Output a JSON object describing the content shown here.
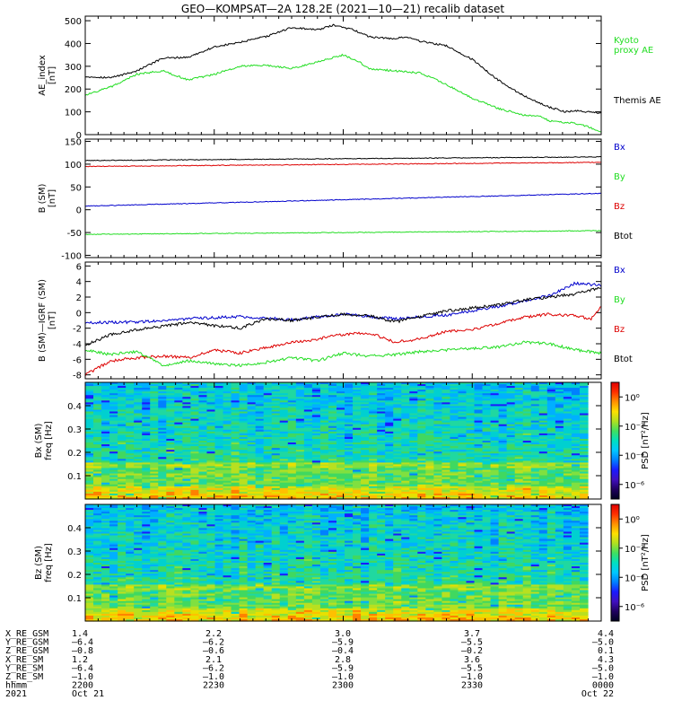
{
  "title": "GEO—KOMPSAT—2A 128.2E (2021—10—21) recalib dataset",
  "colors": {
    "black": "#000000",
    "green": "#22dd22",
    "blue": "#0000cc",
    "red": "#dd0000"
  },
  "chart_data": [
    {
      "type": "line",
      "id": "ae",
      "ylabel": [
        "AE_index",
        "[nT]"
      ],
      "ylim": [
        0,
        520
      ],
      "yticks": [
        0,
        100,
        200,
        300,
        400,
        500
      ],
      "xlim": [
        0,
        1
      ],
      "series": [
        {
          "name": "Themis AE",
          "color": "#000000",
          "x": [
            0,
            0.05,
            0.1,
            0.15,
            0.2,
            0.25,
            0.3,
            0.35,
            0.4,
            0.45,
            0.48,
            0.52,
            0.55,
            0.6,
            0.62,
            0.65,
            0.7,
            0.75,
            0.8,
            0.85,
            0.9,
            0.93,
            0.95,
            1
          ],
          "y": [
            255,
            250,
            280,
            335,
            340,
            385,
            405,
            430,
            470,
            460,
            480,
            460,
            430,
            420,
            430,
            410,
            390,
            330,
            240,
            170,
            120,
            100,
            105,
            95
          ]
        },
        {
          "name": "Kyoto proxy AE",
          "color": "#22dd22",
          "x": [
            0,
            0.05,
            0.1,
            0.15,
            0.2,
            0.25,
            0.3,
            0.35,
            0.4,
            0.45,
            0.5,
            0.53,
            0.55,
            0.6,
            0.65,
            0.7,
            0.75,
            0.8,
            0.85,
            0.88,
            0.9,
            0.95,
            0.98,
            1
          ],
          "y": [
            175,
            210,
            265,
            280,
            240,
            265,
            300,
            305,
            290,
            320,
            350,
            320,
            290,
            280,
            270,
            220,
            160,
            115,
            85,
            80,
            60,
            50,
            30,
            10
          ]
        }
      ],
      "legend": [
        {
          "text": [
            "Kyoto",
            "proxy AE"
          ],
          "color": "#22dd22"
        },
        {
          "text": [
            "Themis AE"
          ],
          "color": "#000000"
        }
      ]
    },
    {
      "type": "line",
      "id": "bsm",
      "ylabel": [
        "B (SM)",
        "[nT]"
      ],
      "ylim": [
        -105,
        155
      ],
      "yticks": [
        -100,
        -50,
        0,
        50,
        100,
        150
      ],
      "xlim": [
        0,
        1
      ],
      "series": [
        {
          "name": "Btot",
          "color": "#000000",
          "x": [
            0,
            1
          ],
          "y": [
            108,
            116
          ]
        },
        {
          "name": "Bz",
          "color": "#dd0000",
          "x": [
            0,
            1
          ],
          "y": [
            95,
            104
          ]
        },
        {
          "name": "Bx",
          "color": "#0000cc",
          "x": [
            0,
            1
          ],
          "y": [
            8,
            36
          ]
        },
        {
          "name": "By",
          "color": "#22dd22",
          "x": [
            0,
            1
          ],
          "y": [
            -54,
            -46
          ]
        }
      ],
      "legend": [
        {
          "text": [
            "Bx"
          ],
          "color": "#0000cc"
        },
        {
          "text": [
            "By"
          ],
          "color": "#22dd22"
        },
        {
          "text": [
            "Bz"
          ],
          "color": "#dd0000"
        },
        {
          "text": [
            "Btot"
          ],
          "color": "#000000"
        }
      ]
    },
    {
      "type": "line",
      "id": "bdiff",
      "ylabel": [
        "B (SM)—IGRF (SM)",
        "[nT]"
      ],
      "ylim": [
        -8.5,
        6.5
      ],
      "yticks": [
        -8,
        -6,
        -4,
        -2,
        0,
        2,
        4,
        6
      ],
      "xlim": [
        0,
        1
      ],
      "series": [
        {
          "name": "Bx",
          "color": "#0000cc",
          "x": [
            0,
            0.1,
            0.2,
            0.3,
            0.4,
            0.5,
            0.6,
            0.7,
            0.8,
            0.85,
            0.9,
            0.95,
            1
          ],
          "y": [
            -1.3,
            -1.2,
            -0.8,
            -0.5,
            -0.9,
            -0.2,
            -0.8,
            -0.3,
            0.8,
            1.5,
            2.2,
            3.8,
            3.5
          ]
        },
        {
          "name": "Btot",
          "color": "#000000",
          "x": [
            0,
            0.05,
            0.1,
            0.2,
            0.3,
            0.35,
            0.4,
            0.45,
            0.5,
            0.55,
            0.6,
            0.65,
            0.7,
            0.75,
            0.8,
            0.85,
            0.9,
            0.95,
            1
          ],
          "y": [
            -4.2,
            -2.8,
            -2.2,
            -1.3,
            -2.0,
            -0.8,
            -1.0,
            -0.6,
            -0.2,
            -0.4,
            -1.2,
            -0.5,
            0.2,
            0.6,
            1.0,
            1.6,
            2.0,
            2.4,
            3.2
          ]
        },
        {
          "name": "Bz",
          "color": "#dd0000",
          "x": [
            0,
            0.05,
            0.1,
            0.15,
            0.2,
            0.25,
            0.3,
            0.35,
            0.4,
            0.45,
            0.5,
            0.55,
            0.6,
            0.65,
            0.7,
            0.75,
            0.8,
            0.85,
            0.9,
            0.95,
            0.98,
            1
          ],
          "y": [
            -8.0,
            -6.2,
            -5.8,
            -5.6,
            -5.8,
            -4.8,
            -5.2,
            -4.5,
            -3.8,
            -3.4,
            -2.8,
            -2.6,
            -3.8,
            -3.4,
            -2.4,
            -2.2,
            -1.4,
            -0.6,
            -0.2,
            -0.4,
            -0.8,
            0.8
          ]
        },
        {
          "name": "By",
          "color": "#22dd22",
          "x": [
            0,
            0.05,
            0.1,
            0.15,
            0.2,
            0.25,
            0.3,
            0.35,
            0.4,
            0.45,
            0.5,
            0.55,
            0.6,
            0.65,
            0.7,
            0.75,
            0.8,
            0.85,
            0.9,
            0.95,
            1
          ],
          "y": [
            -4.8,
            -5.4,
            -5.0,
            -6.8,
            -6.2,
            -6.6,
            -6.8,
            -6.4,
            -5.8,
            -6.2,
            -5.2,
            -5.6,
            -5.4,
            -5.0,
            -4.8,
            -4.6,
            -4.4,
            -3.8,
            -4.0,
            -4.8,
            -5.2
          ]
        }
      ],
      "legend": [
        {
          "text": [
            "Bx"
          ],
          "color": "#0000cc"
        },
        {
          "text": [
            "By"
          ],
          "color": "#22dd22"
        },
        {
          "text": [
            "Bz"
          ],
          "color": "#dd0000"
        },
        {
          "text": [
            "Btot"
          ],
          "color": "#000000"
        }
      ]
    },
    {
      "type": "heatmap",
      "id": "bx_spec",
      "ylabel": [
        "Bx (SM)",
        "freq [Hz]"
      ],
      "ylim": [
        0,
        0.5
      ],
      "yticks": [
        0.1,
        0.2,
        0.3,
        0.4
      ],
      "colorbar": {
        "label": "PSD [nT²/Hz]",
        "ticks": [
          "10⁰",
          "10⁻²",
          "10⁻⁴",
          "10⁻⁶"
        ],
        "log_range": [
          -7,
          1
        ]
      }
    },
    {
      "type": "heatmap",
      "id": "bz_spec",
      "ylabel": [
        "Bz (SM)",
        "freq [Hz]"
      ],
      "ylim": [
        0,
        0.5
      ],
      "yticks": [
        0.1,
        0.2,
        0.3,
        0.4
      ],
      "colorbar": {
        "label": "PSD [nT²/Hz]",
        "ticks": [
          "10⁰",
          "10⁻²",
          "10⁻⁴",
          "10⁻⁶"
        ],
        "log_range": [
          -7,
          1
        ]
      }
    }
  ],
  "xaxis": {
    "labels": [
      "X_RE_GSM",
      "Y_RE_GSM",
      "Z_RE_GSM",
      "X_RE_SM",
      "Y_RE_SM",
      "Z_RE_SM",
      "hhmm",
      "2021"
    ],
    "columns": [
      {
        "values": [
          "1.4",
          "—6.4",
          "—0.8",
          "1.2",
          "—6.4",
          "—1.0",
          "2200",
          "Oct 21"
        ]
      },
      {
        "values": [
          "2.2",
          "—6.2",
          "—0.6",
          "2.1",
          "—6.2",
          "—1.0",
          "2230",
          ""
        ]
      },
      {
        "values": [
          "3.0",
          "—5.9",
          "—0.4",
          "2.8",
          "—5.9",
          "—1.0",
          "2300",
          ""
        ]
      },
      {
        "values": [
          "3.7",
          "—5.5",
          "—0.2",
          "3.6",
          "—5.5",
          "—1.0",
          "2330",
          ""
        ]
      },
      {
        "values": [
          "4.4",
          "—5.0",
          "0.1",
          "4.3",
          "—5.0",
          "—1.0",
          "0000",
          "Oct 22"
        ]
      }
    ]
  }
}
